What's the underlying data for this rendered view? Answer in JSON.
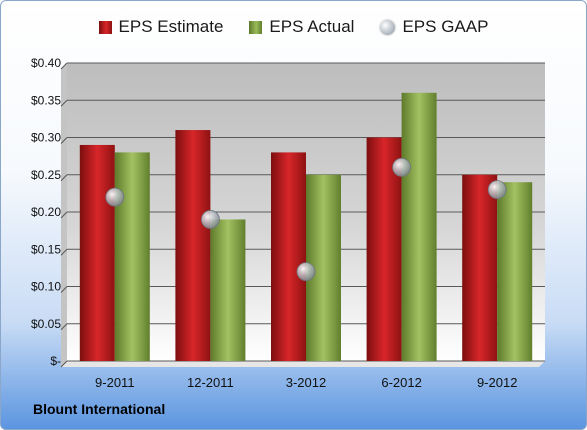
{
  "chart_data": {
    "type": "bar",
    "categories": [
      "9-2011",
      "12-2011",
      "3-2012",
      "6-2012",
      "9-2012"
    ],
    "series": [
      {
        "name": "EPS Estimate",
        "type": "bar",
        "values": [
          0.29,
          0.31,
          0.28,
          0.3,
          0.25
        ],
        "color": "#c0191c"
      },
      {
        "name": "EPS Actual",
        "type": "bar",
        "values": [
          0.28,
          0.19,
          0.25,
          0.36,
          0.24
        ],
        "color": "#8cad4a"
      },
      {
        "name": "EPS GAAP",
        "type": "scatter",
        "values": [
          0.22,
          0.19,
          0.12,
          0.26,
          0.23
        ],
        "color": "#b4bac2"
      }
    ],
    "ylim": [
      0,
      0.4
    ],
    "y_ticks": [
      {
        "value": 0.4,
        "label": "$0.40"
      },
      {
        "value": 0.35,
        "label": "$0.35"
      },
      {
        "value": 0.3,
        "label": "$0.30"
      },
      {
        "value": 0.25,
        "label": "$0.25"
      },
      {
        "value": 0.2,
        "label": "$0.20"
      },
      {
        "value": 0.15,
        "label": "$0.15"
      },
      {
        "value": 0.1,
        "label": "$0.10"
      },
      {
        "value": 0.05,
        "label": "$0.05"
      },
      {
        "value": 0,
        "label": "$-"
      }
    ],
    "grid": true,
    "legend_position": "top"
  },
  "caption": "Blount International"
}
